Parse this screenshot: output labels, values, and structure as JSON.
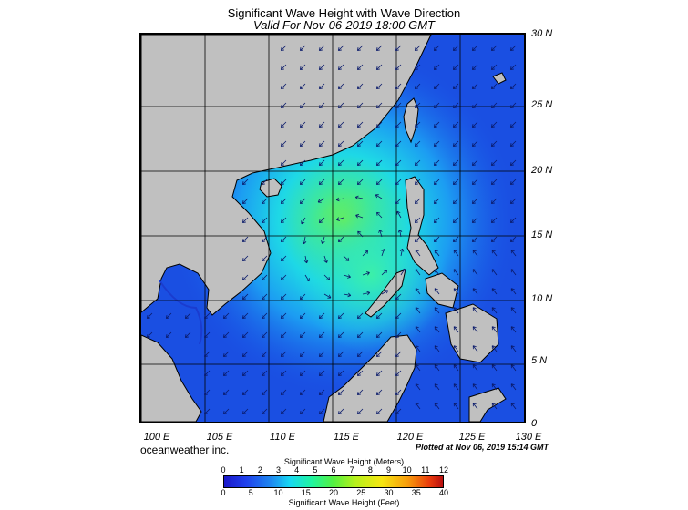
{
  "title": "Significant Wave Height with Wave Direction",
  "subtitle": "Valid For Nov-06-2019 18:00 GMT",
  "lat_labels": [
    "30 N",
    "25 N",
    "20 N",
    "15 N",
    "10 N",
    "5 N",
    "0"
  ],
  "lon_labels": [
    "100 E",
    "105 E",
    "110 E",
    "115 E",
    "120 E",
    "125 E",
    "130 E"
  ],
  "brand": "oceanweather inc.",
  "plotted": "Plotted at Nov 06, 2019 15:14 GMT",
  "scale": {
    "meters_title": "Significant Wave Height (Meters)",
    "meters_ticks": [
      "0",
      "1",
      "2",
      "3",
      "4",
      "5",
      "6",
      "7",
      "8",
      "9",
      "10",
      "11",
      "12"
    ],
    "feet_ticks": [
      "0",
      "5",
      "10",
      "15",
      "20",
      "25",
      "30",
      "35",
      "40"
    ],
    "feet_title": "Significant Wave Height (Feet)"
  },
  "colors": {
    "land": "#c0c0c0",
    "low_wave": "#1a4de6",
    "high_wave": "#3ee08a"
  }
}
